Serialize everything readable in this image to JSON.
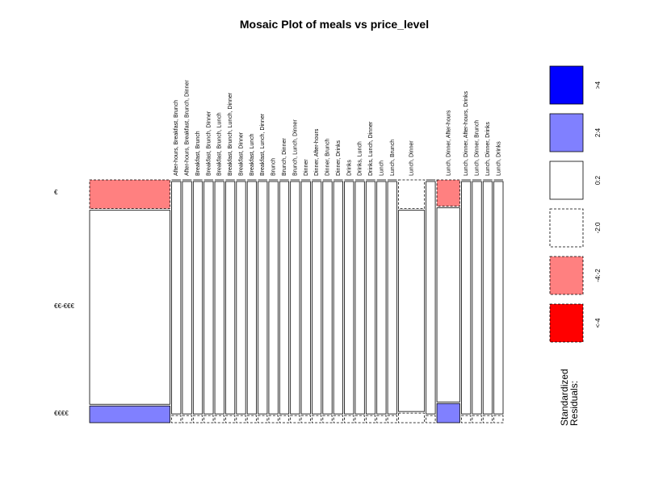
{
  "chart_data": {
    "type": "mosaic",
    "title": "Mosaic Plot of meals vs price_level",
    "row_variable": "price_level",
    "column_variable": "meals",
    "rows": [
      "€",
      "€€-€€€",
      "€€€€"
    ],
    "columns": [
      {
        "label": "",
        "row_shares": [
          0.12,
          0.81,
          0.07
        ],
        "residual_bins": [
          "-4:-2",
          "0:2",
          "2:4"
        ]
      },
      {
        "label": "After-hours, Breakfast, Brunch",
        "row_shares": [
          0.0,
          0.97,
          0.03
        ],
        "residual_bins": [
          "-2:0",
          "0:2",
          "-2:0"
        ]
      },
      {
        "label": "After-hours, Breakfast, Brunch, Dinner",
        "row_shares": [
          0.0,
          0.97,
          0.03
        ],
        "residual_bins": [
          "-2:0",
          "0:2",
          "-2:0"
        ]
      },
      {
        "label": "Breakfast, Brunch",
        "row_shares": [
          0.0,
          0.97,
          0.03
        ],
        "residual_bins": [
          "-2:0",
          "0:2",
          "-2:0"
        ]
      },
      {
        "label": "Breakfast, Brunch, Dinner",
        "row_shares": [
          0.0,
          0.97,
          0.03
        ],
        "residual_bins": [
          "-2:0",
          "0:2",
          "-2:0"
        ]
      },
      {
        "label": "Breakfast, Brunch, Lunch",
        "row_shares": [
          0.0,
          0.97,
          0.03
        ],
        "residual_bins": [
          "-2:0",
          "0:2",
          "-2:0"
        ]
      },
      {
        "label": "Breakfast, Brunch, Lunch, Dinner",
        "row_shares": [
          0.0,
          0.97,
          0.03
        ],
        "residual_bins": [
          "-2:0",
          "0:2",
          "-2:0"
        ]
      },
      {
        "label": "Breakfast, Dinner",
        "row_shares": [
          0.0,
          0.97,
          0.03
        ],
        "residual_bins": [
          "-2:0",
          "0:2",
          "-2:0"
        ]
      },
      {
        "label": "Breakfast, Lunch",
        "row_shares": [
          0.0,
          0.97,
          0.03
        ],
        "residual_bins": [
          "-2:0",
          "0:2",
          "-2:0"
        ]
      },
      {
        "label": "Breakfast, Lunch, Dinner",
        "row_shares": [
          0.0,
          0.97,
          0.03
        ],
        "residual_bins": [
          "-2:0",
          "0:2",
          "-2:0"
        ]
      },
      {
        "label": "Brunch",
        "row_shares": [
          0.0,
          0.97,
          0.03
        ],
        "residual_bins": [
          "-2:0",
          "0:2",
          "-2:0"
        ]
      },
      {
        "label": "Brunch, Dinner",
        "row_shares": [
          0.0,
          0.97,
          0.03
        ],
        "residual_bins": [
          "-2:0",
          "0:2",
          "-2:0"
        ]
      },
      {
        "label": "Brunch, Lunch, Dinner",
        "row_shares": [
          0.0,
          0.97,
          0.03
        ],
        "residual_bins": [
          "-2:0",
          "0:2",
          "-2:0"
        ]
      },
      {
        "label": "Dinner",
        "row_shares": [
          0.0,
          0.97,
          0.03
        ],
        "residual_bins": [
          "-2:0",
          "0:2",
          "-2:0"
        ]
      },
      {
        "label": "Dinner, After-hours",
        "row_shares": [
          0.0,
          0.97,
          0.03
        ],
        "residual_bins": [
          "-2:0",
          "0:2",
          "-2:0"
        ]
      },
      {
        "label": "Dinner, Brunch",
        "row_shares": [
          0.0,
          0.97,
          0.03
        ],
        "residual_bins": [
          "-2:0",
          "0:2",
          "-2:0"
        ]
      },
      {
        "label": "Dinner, Drinks",
        "row_shares": [
          0.0,
          0.97,
          0.03
        ],
        "residual_bins": [
          "-2:0",
          "0:2",
          "-2:0"
        ]
      },
      {
        "label": "Drinks",
        "row_shares": [
          0.0,
          0.97,
          0.03
        ],
        "residual_bins": [
          "-2:0",
          "0:2",
          "-2:0"
        ]
      },
      {
        "label": "Drinks, Lunch",
        "row_shares": [
          0.0,
          0.97,
          0.03
        ],
        "residual_bins": [
          "-2:0",
          "0:2",
          "-2:0"
        ]
      },
      {
        "label": "Drinks, Lunch, Dinner",
        "row_shares": [
          0.0,
          0.97,
          0.03
        ],
        "residual_bins": [
          "-2:0",
          "0:2",
          "-2:0"
        ]
      },
      {
        "label": "Lunch",
        "row_shares": [
          0.0,
          0.97,
          0.03
        ],
        "residual_bins": [
          "-2:0",
          "0:2",
          "-2:0"
        ]
      },
      {
        "label": "Lunch, Brunch",
        "row_shares": [
          0.0,
          0.97,
          0.03
        ],
        "residual_bins": [
          "-2:0",
          "0:2",
          "-2:0"
        ]
      },
      {
        "label": "Lunch, Dinner",
        "row_shares": [
          0.12,
          0.84,
          0.04
        ],
        "residual_bins": [
          "-2:0",
          "0:2",
          "-2:0"
        ]
      },
      {
        "label": "",
        "row_shares": [
          0.0,
          0.97,
          0.03
        ],
        "residual_bins": [
          "-2:0",
          "0:2",
          "-2:0"
        ]
      },
      {
        "label": "Lunch, Dinner, After-hours",
        "row_shares": [
          0.11,
          0.81,
          0.08
        ],
        "residual_bins": [
          "-4:-2",
          "0:2",
          "2:4"
        ]
      },
      {
        "label": "Lunch, Dinner, After-hours, Drinks",
        "row_shares": [
          0.0,
          0.97,
          0.03
        ],
        "residual_bins": [
          "-2:0",
          "0:2",
          "-2:0"
        ]
      },
      {
        "label": "Lunch, Dinner, Brunch",
        "row_shares": [
          0.0,
          0.97,
          0.03
        ],
        "residual_bins": [
          "-2:0",
          "0:2",
          "-2:0"
        ]
      },
      {
        "label": "Lunch, Dinner, Drinks",
        "row_shares": [
          0.0,
          0.97,
          0.03
        ],
        "residual_bins": [
          "-2:0",
          "0:2",
          "-2:0"
        ]
      },
      {
        "label": "Lunch, Drinks",
        "row_shares": [
          0.0,
          0.97,
          0.03
        ],
        "residual_bins": [
          "-2:0",
          "0:2",
          "-2:0"
        ]
      }
    ],
    "legend": {
      "title": "Standardized Residuals:",
      "bins": [
        {
          "label": ">4",
          "color": "#0000FF",
          "border": "solid"
        },
        {
          "label": "2:4",
          "color": "#8080FF",
          "border": "solid"
        },
        {
          "label": "0:2",
          "color": "#FFFFFF",
          "border": "solid"
        },
        {
          "label": "-2:0",
          "color": "#FFFFFF",
          "border": "dashed"
        },
        {
          "label": "-4:-2",
          "color": "#FF8080",
          "border": "dashed"
        },
        {
          "label": "<-4",
          "color": "#FF0000",
          "border": "dashed"
        }
      ]
    }
  }
}
